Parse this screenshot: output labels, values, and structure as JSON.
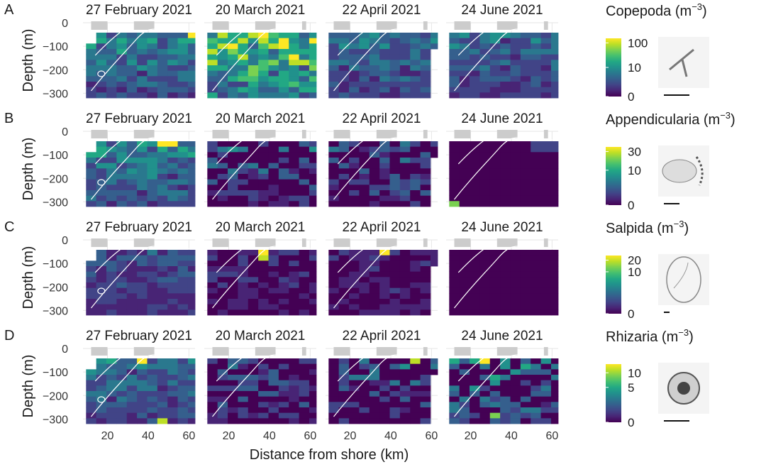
{
  "chart_data": {
    "type": "heatmap",
    "dates": [
      "27 February 2021",
      "20 March 2021",
      "22 April 2021",
      "24 June 2021"
    ],
    "xlabel": "Distance from shore (km)",
    "ylabel": "Depth (m)",
    "xlim": [
      8,
      63
    ],
    "ylim": [
      -320,
      0
    ],
    "x_ticks": [
      20,
      40,
      60
    ],
    "y_ticks": [
      0,
      -100,
      -200,
      -300
    ],
    "panels": [
      {
        "letter": "A",
        "taxon": "Copepoda",
        "unit": "(m",
        "exp": "−3",
        "unit_close": ")",
        "scale_ticks": [
          {
            "label": "100",
            "frac": 0.92
          },
          {
            "label": "10",
            "frac": 0.5
          },
          {
            "label": "0",
            "frac": 0.0
          }
        ],
        "scale_bar_um": 1000
      },
      {
        "letter": "B",
        "taxon": "Appendicularia",
        "unit": "(m",
        "exp": "−3",
        "unit_close": ")",
        "scale_ticks": [
          {
            "label": "30",
            "frac": 0.92
          },
          {
            "label": "10",
            "frac": 0.6
          },
          {
            "label": "0",
            "frac": 0.0
          }
        ],
        "scale_bar_um": 500
      },
      {
        "letter": "C",
        "taxon": "Salpida",
        "unit": "(m",
        "exp": "−3",
        "unit_close": ")",
        "scale_ticks": [
          {
            "label": "20",
            "frac": 0.92
          },
          {
            "label": "10",
            "frac": 0.72
          },
          {
            "label": "0",
            "frac": 0.0
          }
        ],
        "scale_bar_um": 200
      },
      {
        "letter": "D",
        "taxon": "Rhizaria",
        "unit": "(m",
        "exp": "−3",
        "unit_close": ")",
        "scale_ticks": [
          {
            "label": "10",
            "frac": 0.85
          },
          {
            "label": "5",
            "frac": 0.6
          },
          {
            "label": "0",
            "frac": 0.0
          }
        ],
        "scale_bar_um": 1000
      }
    ],
    "grid": {
      "x_centers_km": [
        12,
        17,
        22,
        27,
        32,
        37,
        42,
        47,
        52,
        57,
        62
      ],
      "depth_bins_m": [
        -25,
        -50,
        -75,
        -100,
        -125,
        -150,
        -175,
        -200,
        -225,
        -250,
        -275,
        -300
      ],
      "note": "normalized intensity 0-1 on each taxon's colour scale, rows = depth bins (top to bottom), columns = distance bins"
    },
    "seeds": [
      [
        [
          11,
          0.55
        ],
        [
          21,
          0.95
        ],
        [
          31,
          0.45
        ],
        [
          41,
          0.4
        ]
      ],
      [
        [
          12,
          0.55
        ],
        [
          22,
          0.4
        ],
        [
          32,
          0.35
        ],
        [
          42,
          0.4
        ]
      ],
      [
        [
          13,
          0.3
        ],
        [
          23,
          0.2
        ],
        [
          33,
          0.2
        ],
        [
          43,
          0.15
        ]
      ],
      [
        [
          14,
          0.45
        ],
        [
          24,
          0.35
        ],
        [
          34,
          0.4
        ],
        [
          44,
          0.55
        ]
      ]
    ],
    "hotspots": [
      {
        "panel": 0,
        "date": 0,
        "col": 10,
        "row": 0,
        "value": 1.0
      },
      {
        "panel": 0,
        "date": 1,
        "col": 7,
        "row": 1,
        "value": 0.95
      },
      {
        "panel": 1,
        "date": 0,
        "col": 7,
        "row": 0,
        "value": 1.0
      },
      {
        "panel": 1,
        "date": 0,
        "col": 8,
        "row": 0,
        "value": 0.95
      },
      {
        "panel": 1,
        "date": 3,
        "col": 0,
        "row": 11,
        "value": 0.8
      },
      {
        "panel": 2,
        "date": 1,
        "col": 5,
        "row": 0,
        "value": 1.0
      },
      {
        "panel": 2,
        "date": 1,
        "col": 5,
        "row": 1,
        "value": 0.85
      },
      {
        "panel": 2,
        "date": 2,
        "col": 5,
        "row": 0,
        "value": 1.0
      },
      {
        "panel": 3,
        "date": 0,
        "col": 5,
        "row": 0,
        "value": 1.0
      },
      {
        "panel": 3,
        "date": 0,
        "col": 7,
        "row": 11,
        "value": 0.85
      },
      {
        "panel": 3,
        "date": 2,
        "col": 8,
        "row": 0,
        "value": 0.9
      },
      {
        "panel": 3,
        "date": 3,
        "col": 3,
        "row": 0,
        "value": 1.0
      },
      {
        "panel": 3,
        "date": 3,
        "col": 4,
        "row": 10,
        "value": 0.8
      }
    ],
    "colormap": [
      "#440154",
      "#482475",
      "#414487",
      "#355f8d",
      "#2a788e",
      "#21918c",
      "#22a884",
      "#44bf70",
      "#7ad151",
      "#bddf26",
      "#fde725"
    ],
    "contour_color": "#ffffff",
    "frame_bar_color": "#cccccc"
  }
}
